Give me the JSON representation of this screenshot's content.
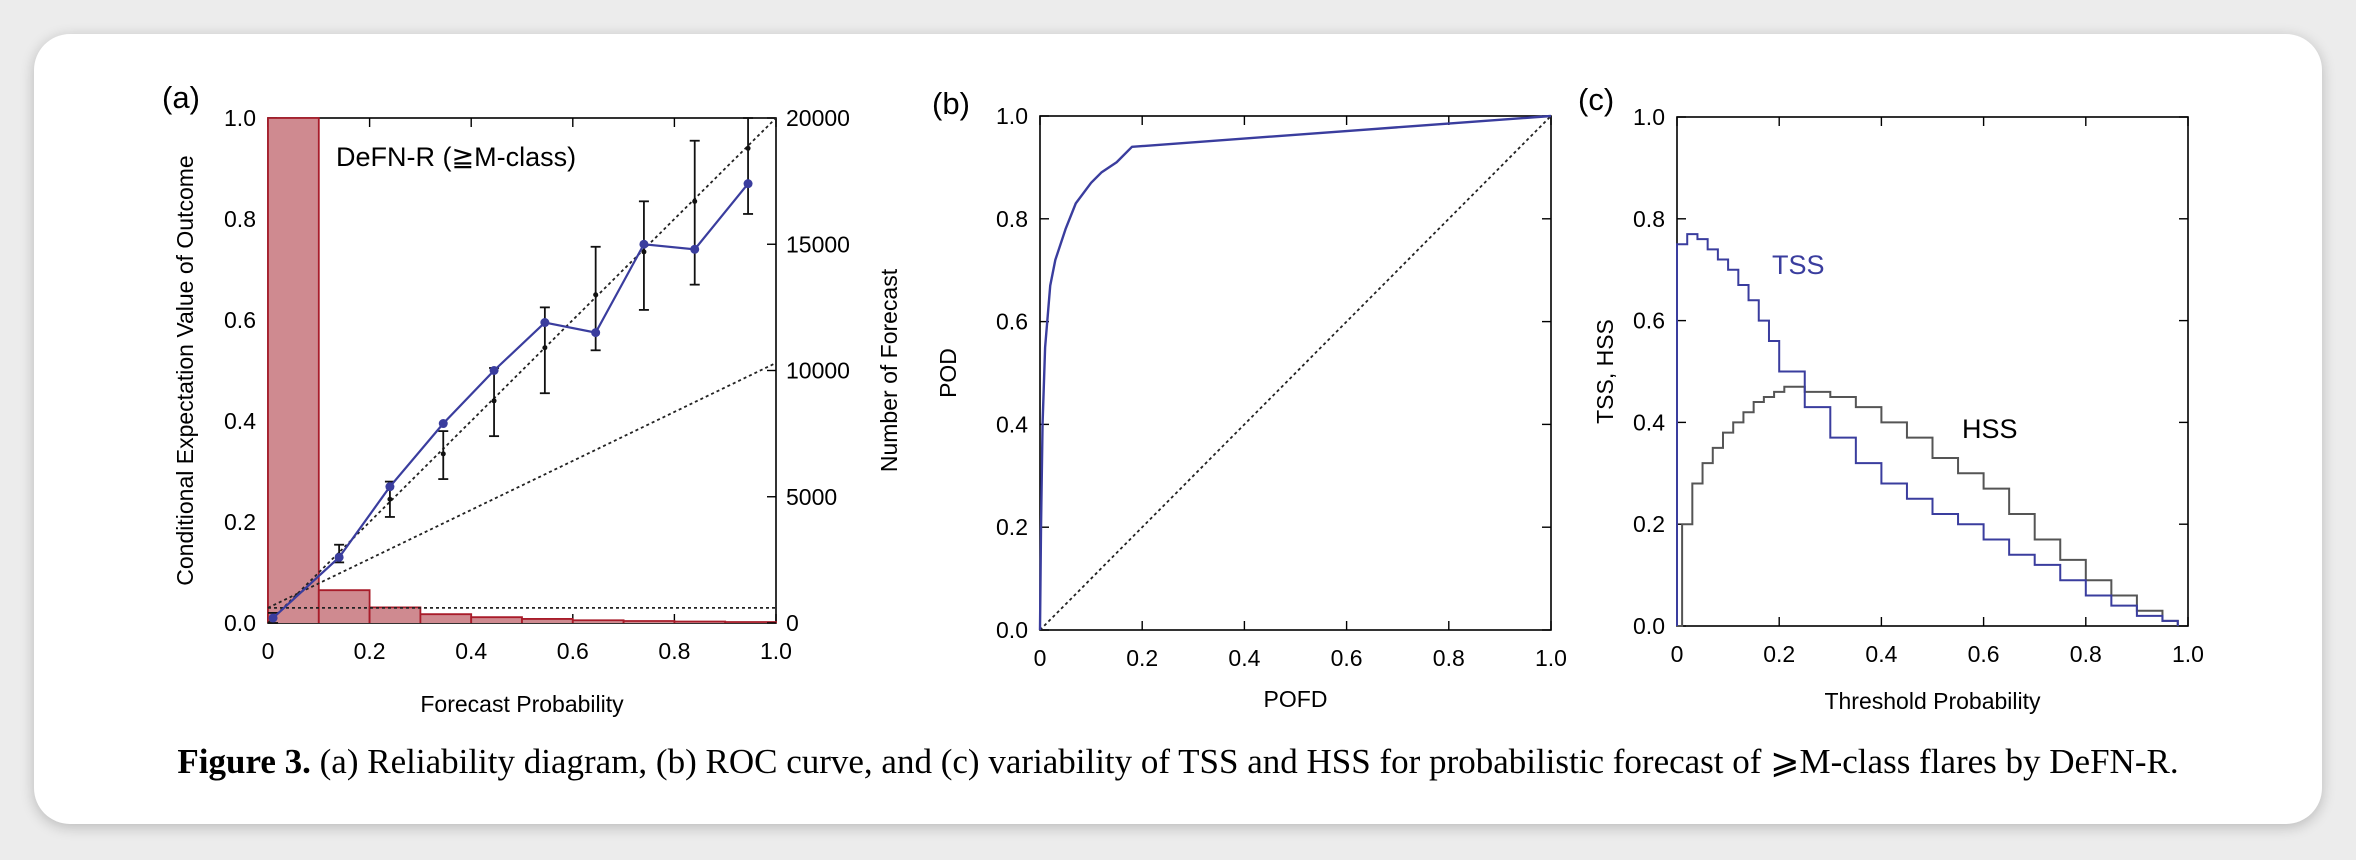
{
  "caption": {
    "label": "Figure 3.",
    "text": "(a) Reliability diagram, (b) ROC curve, and (c) variability of TSS and HSS for probabilistic forecast of ⩾M-class flares by DeFN-R."
  },
  "colors": {
    "blue": "#3a3d9e",
    "red_fill": "#cf8a90",
    "red_line": "#a81c2a",
    "gray": "#555555",
    "black": "#111111"
  },
  "chart_data": [
    {
      "panel": "(a)",
      "type": "line",
      "subtitle": "DeFN-R (≧M-class)",
      "xlabel": "Forecast Probability",
      "ylabel": "Conditional Expectation Value of Outcome",
      "ylabel_right": "Number of Forecast",
      "xlim": [
        0,
        1
      ],
      "ylim": [
        0,
        1
      ],
      "ylim_right": [
        0,
        20000
      ],
      "xticks": [
        "0",
        "0.2",
        "0.4",
        "0.6",
        "0.8",
        "1.0"
      ],
      "yticks": [
        "0.0",
        "0.2",
        "0.4",
        "0.6",
        "0.8",
        "1.0"
      ],
      "yticks_right": [
        "0",
        "5000",
        "10000",
        "15000",
        "20000"
      ],
      "series": [
        {
          "x": [
            0.01,
            0.14,
            0.24,
            0.345,
            0.445,
            0.545,
            0.645,
            0.74,
            0.84,
            0.945
          ],
          "values": [
            0.01,
            0.13,
            0.27,
            0.395,
            0.5,
            0.595,
            0.575,
            0.75,
            0.74,
            0.87
          ],
          "err_low": [
            0.0,
            0.12,
            0.21,
            0.285,
            0.37,
            0.455,
            0.54,
            0.62,
            0.67,
            0.81
          ],
          "err_high": [
            0.02,
            0.155,
            0.28,
            0.38,
            0.505,
            0.625,
            0.745,
            0.835,
            0.955,
            1.0
          ],
          "err_center": [
            0.01,
            0.135,
            0.245,
            0.335,
            0.44,
            0.545,
            0.65,
            0.735,
            0.835,
            0.94
          ]
        }
      ],
      "histogram": {
        "bin_edges": [
          0,
          0.1,
          0.2,
          0.3,
          0.4,
          0.5,
          0.6,
          0.7,
          0.8,
          0.9,
          1.0
        ],
        "counts": [
          20000,
          1300,
          620,
          350,
          230,
          160,
          110,
          80,
          60,
          40
        ]
      },
      "reference_lines": {
        "diagonal": [
          [
            0,
            0
          ],
          [
            1,
            1
          ]
        ],
        "no_skill": [
          [
            0,
            0.03
          ],
          [
            1,
            0.515
          ]
        ],
        "climatology": 0.03
      }
    },
    {
      "panel": "(b)",
      "type": "line",
      "xlabel": "POFD",
      "ylabel": "POD",
      "xlim": [
        0,
        1
      ],
      "ylim": [
        0,
        1
      ],
      "xticks": [
        "0",
        "0.2",
        "0.4",
        "0.6",
        "0.8",
        "1.0"
      ],
      "yticks": [
        "0.0",
        "0.2",
        "0.4",
        "0.6",
        "0.8",
        "1.0"
      ],
      "series": [
        {
          "x": [
            0,
            0.002,
            0.005,
            0.01,
            0.02,
            0.03,
            0.05,
            0.07,
            0.1,
            0.12,
            0.15,
            0.18,
            1.0
          ],
          "values": [
            0,
            0.2,
            0.4,
            0.55,
            0.67,
            0.72,
            0.78,
            0.83,
            0.87,
            0.89,
            0.91,
            0.94,
            1.0
          ]
        }
      ],
      "reference_lines": {
        "diagonal": [
          [
            0,
            0
          ],
          [
            1,
            1
          ]
        ]
      }
    },
    {
      "panel": "(c)",
      "type": "line",
      "xlabel": "Threshold Probability",
      "ylabel": "TSS, HSS",
      "xlim": [
        0,
        1
      ],
      "ylim": [
        0,
        1
      ],
      "xticks": [
        "0",
        "0.2",
        "0.4",
        "0.6",
        "0.8",
        "1.0"
      ],
      "yticks": [
        "0.0",
        "0.2",
        "0.4",
        "0.6",
        "0.8",
        "1.0"
      ],
      "series": [
        {
          "name": "TSS",
          "x": [
            0,
            0.02,
            0.04,
            0.06,
            0.08,
            0.1,
            0.12,
            0.14,
            0.16,
            0.18,
            0.2,
            0.25,
            0.3,
            0.35,
            0.4,
            0.45,
            0.5,
            0.55,
            0.6,
            0.65,
            0.7,
            0.75,
            0.8,
            0.85,
            0.9,
            0.95,
            0.98
          ],
          "values": [
            0.75,
            0.77,
            0.76,
            0.74,
            0.72,
            0.7,
            0.67,
            0.64,
            0.6,
            0.56,
            0.5,
            0.43,
            0.37,
            0.32,
            0.28,
            0.25,
            0.22,
            0.2,
            0.17,
            0.14,
            0.12,
            0.09,
            0.06,
            0.04,
            0.02,
            0.01,
            0
          ]
        },
        {
          "name": "HSS",
          "x": [
            0,
            0.01,
            0.03,
            0.05,
            0.07,
            0.09,
            0.11,
            0.13,
            0.15,
            0.17,
            0.19,
            0.21,
            0.23,
            0.25,
            0.3,
            0.35,
            0.4,
            0.45,
            0.5,
            0.55,
            0.6,
            0.65,
            0.7,
            0.75,
            0.8,
            0.85,
            0.9,
            0.95,
            0.98
          ],
          "values": [
            0,
            0.2,
            0.28,
            0.32,
            0.35,
            0.38,
            0.4,
            0.42,
            0.44,
            0.45,
            0.46,
            0.47,
            0.47,
            0.46,
            0.45,
            0.43,
            0.4,
            0.37,
            0.33,
            0.3,
            0.27,
            0.22,
            0.17,
            0.13,
            0.09,
            0.06,
            0.03,
            0.01,
            0
          ]
        }
      ]
    }
  ]
}
